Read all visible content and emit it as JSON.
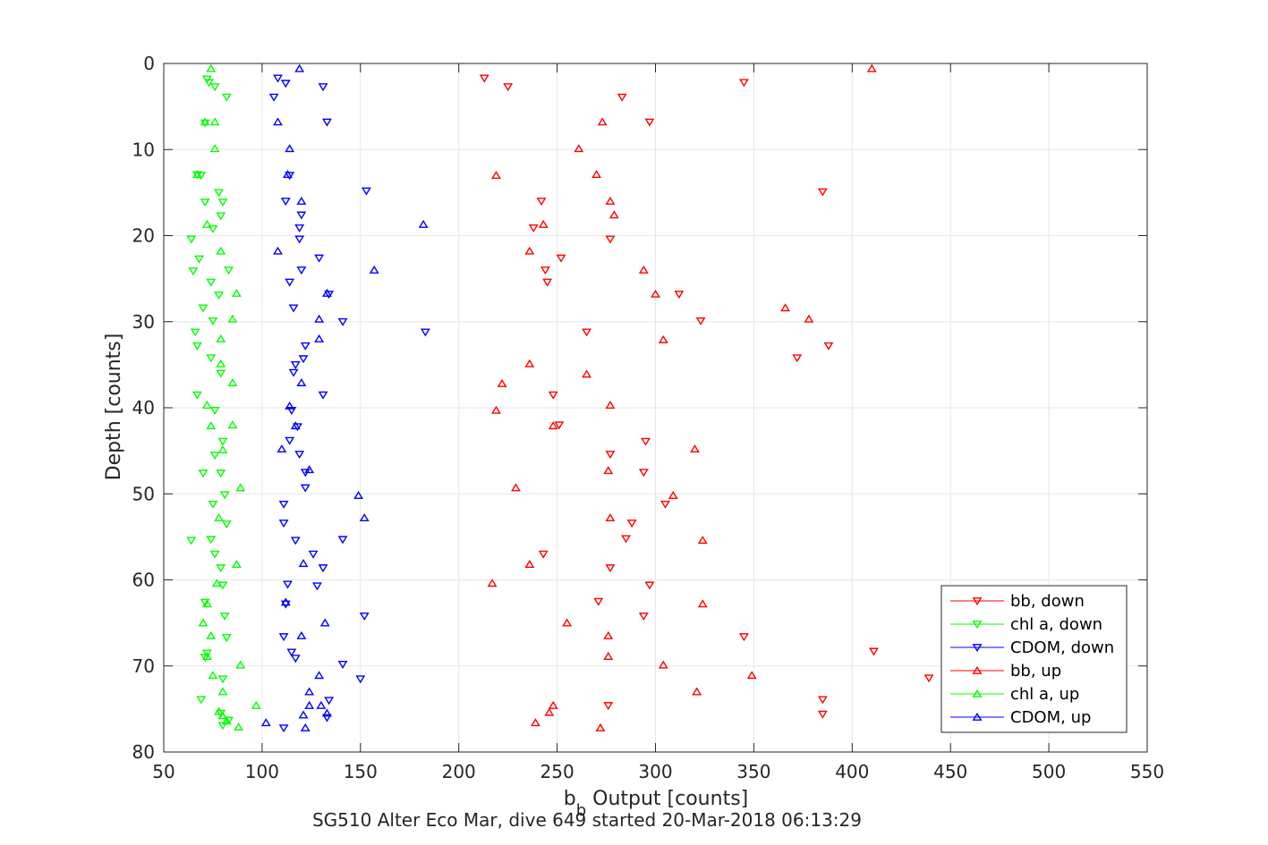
{
  "chart_data": {
    "type": "scatter",
    "title": "",
    "xlabel_main": "b",
    "xlabel_sub": "b",
    "xlabel_rest": " Output [counts]",
    "ylabel": "Depth [counts]",
    "caption": "SG510 Alter Eco Mar, dive 649 started 20-Mar-2018 06:13:29",
    "xlim": [
      50,
      550
    ],
    "ylim": [
      0,
      80
    ],
    "y_reversed": true,
    "xticks": [
      50,
      100,
      150,
      200,
      250,
      300,
      350,
      400,
      450,
      500,
      550
    ],
    "yticks": [
      0,
      10,
      20,
      30,
      40,
      50,
      60,
      70,
      80
    ],
    "grid": true,
    "legend_position": "bottom-right",
    "series": [
      {
        "name": "bb, down",
        "color": "#ff0000",
        "marker": "triangle-down",
        "points": [
          [
            213,
            1.7
          ],
          [
            225,
            2.7
          ],
          [
            345,
            2.2
          ],
          [
            283,
            3.9
          ],
          [
            297,
            6.8
          ],
          [
            385,
            14.9
          ],
          [
            242,
            16.0
          ],
          [
            238,
            19.1
          ],
          [
            277,
            20.4
          ],
          [
            252,
            22.6
          ],
          [
            244,
            24.0
          ],
          [
            245,
            25.4
          ],
          [
            312,
            26.8
          ],
          [
            323,
            29.9
          ],
          [
            265,
            31.2
          ],
          [
            388,
            32.8
          ],
          [
            372,
            34.2
          ],
          [
            248,
            38.5
          ],
          [
            251,
            42.0
          ],
          [
            295,
            43.9
          ],
          [
            277,
            45.4
          ],
          [
            294,
            47.5
          ],
          [
            305,
            51.2
          ],
          [
            288,
            53.4
          ],
          [
            285,
            55.2
          ],
          [
            243,
            57.0
          ],
          [
            277,
            58.6
          ],
          [
            297,
            60.6
          ],
          [
            271,
            62.5
          ],
          [
            294,
            64.2
          ],
          [
            345,
            66.6
          ],
          [
            411,
            68.3
          ],
          [
            439,
            71.4
          ],
          [
            385,
            73.9
          ],
          [
            385,
            75.6
          ],
          [
            276,
            74.6
          ]
        ]
      },
      {
        "name": "chl a, down",
        "color": "#00ff00",
        "marker": "triangle-down",
        "points": [
          [
            72,
            1.8
          ],
          [
            73,
            2.2
          ],
          [
            76,
            2.7
          ],
          [
            82,
            3.9
          ],
          [
            71,
            6.9
          ],
          [
            67,
            12.9
          ],
          [
            69,
            13.0
          ],
          [
            78,
            15.0
          ],
          [
            80,
            16.1
          ],
          [
            71,
            16.1
          ],
          [
            79,
            17.7
          ],
          [
            75,
            19.2
          ],
          [
            64,
            20.4
          ],
          [
            68,
            22.7
          ],
          [
            83,
            24.0
          ],
          [
            65,
            24.1
          ],
          [
            74,
            25.4
          ],
          [
            78,
            26.9
          ],
          [
            70,
            28.4
          ],
          [
            75,
            29.9
          ],
          [
            66,
            31.2
          ],
          [
            67,
            32.8
          ],
          [
            74,
            34.2
          ],
          [
            79,
            36.0
          ],
          [
            67,
            38.5
          ],
          [
            76,
            40.3
          ],
          [
            80,
            43.9
          ],
          [
            76,
            45.5
          ],
          [
            70,
            47.6
          ],
          [
            79,
            47.6
          ],
          [
            81,
            50.1
          ],
          [
            75,
            51.2
          ],
          [
            82,
            53.5
          ],
          [
            64,
            55.4
          ],
          [
            74,
            55.3
          ],
          [
            76,
            57.0
          ],
          [
            79,
            58.6
          ],
          [
            80,
            60.6
          ],
          [
            71,
            62.6
          ],
          [
            81,
            64.2
          ],
          [
            82,
            66.7
          ],
          [
            72,
            68.5
          ],
          [
            71,
            69.0
          ],
          [
            80,
            71.5
          ],
          [
            69,
            73.9
          ],
          [
            79,
            75.5
          ],
          [
            80,
            76.9
          ],
          [
            83,
            76.3
          ]
        ]
      },
      {
        "name": "CDOM, down",
        "color": "#0000ff",
        "marker": "triangle-down",
        "points": [
          [
            108,
            1.7
          ],
          [
            112,
            2.3
          ],
          [
            131,
            2.7
          ],
          [
            106,
            3.9
          ],
          [
            133,
            6.8
          ],
          [
            114,
            13.0
          ],
          [
            153,
            14.8
          ],
          [
            112,
            16.0
          ],
          [
            120,
            17.6
          ],
          [
            119,
            19.1
          ],
          [
            119,
            20.4
          ],
          [
            129,
            22.6
          ],
          [
            120,
            24.0
          ],
          [
            114,
            25.4
          ],
          [
            134,
            26.8
          ],
          [
            116,
            28.4
          ],
          [
            141,
            30.0
          ],
          [
            183,
            31.2
          ],
          [
            122,
            32.8
          ],
          [
            121,
            34.3
          ],
          [
            117,
            35.0
          ],
          [
            116,
            35.9
          ],
          [
            131,
            38.5
          ],
          [
            115,
            40.3
          ],
          [
            118,
            42.2
          ],
          [
            114,
            43.8
          ],
          [
            119,
            45.4
          ],
          [
            122,
            47.5
          ],
          [
            122,
            49.3
          ],
          [
            111,
            51.2
          ],
          [
            111,
            53.4
          ],
          [
            117,
            55.4
          ],
          [
            141,
            55.3
          ],
          [
            126,
            57.0
          ],
          [
            131,
            58.6
          ],
          [
            113,
            60.5
          ],
          [
            128,
            60.7
          ],
          [
            112,
            62.8
          ],
          [
            152,
            64.2
          ],
          [
            111,
            66.6
          ],
          [
            115,
            68.4
          ],
          [
            117,
            69.1
          ],
          [
            141,
            69.8
          ],
          [
            150,
            71.5
          ],
          [
            134,
            74.0
          ],
          [
            133,
            76.0
          ],
          [
            111,
            77.2
          ]
        ]
      },
      {
        "name": "bb, up",
        "color": "#ff0000",
        "marker": "triangle-up",
        "points": [
          [
            410,
            0.6
          ],
          [
            273,
            6.8
          ],
          [
            261,
            9.9
          ],
          [
            270,
            12.9
          ],
          [
            219,
            13.0
          ],
          [
            277,
            16.0
          ],
          [
            279,
            17.6
          ],
          [
            243,
            18.7
          ],
          [
            236,
            21.8
          ],
          [
            294,
            24.0
          ],
          [
            300,
            26.8
          ],
          [
            366,
            28.4
          ],
          [
            378,
            29.7
          ],
          [
            304,
            32.1
          ],
          [
            236,
            34.9
          ],
          [
            265,
            36.1
          ],
          [
            222,
            37.2
          ],
          [
            277,
            39.7
          ],
          [
            219,
            40.3
          ],
          [
            248,
            42.1
          ],
          [
            320,
            44.8
          ],
          [
            276,
            47.3
          ],
          [
            229,
            49.3
          ],
          [
            309,
            50.2
          ],
          [
            277,
            52.8
          ],
          [
            324,
            55.4
          ],
          [
            236,
            58.2
          ],
          [
            217,
            60.4
          ],
          [
            324,
            62.8
          ],
          [
            255,
            65.0
          ],
          [
            276,
            66.5
          ],
          [
            276,
            68.9
          ],
          [
            304,
            69.9
          ],
          [
            349,
            71.1
          ],
          [
            321,
            73.0
          ],
          [
            248,
            74.6
          ],
          [
            246,
            75.4
          ],
          [
            239,
            76.6
          ],
          [
            272,
            77.2
          ]
        ]
      },
      {
        "name": "chl a, up",
        "color": "#00ff00",
        "marker": "triangle-up",
        "points": [
          [
            74,
            0.6
          ],
          [
            71,
            6.8
          ],
          [
            76,
            6.8
          ],
          [
            76,
            9.9
          ],
          [
            67,
            12.9
          ],
          [
            72,
            18.7
          ],
          [
            79,
            21.8
          ],
          [
            87,
            26.7
          ],
          [
            85,
            29.7
          ],
          [
            79,
            32.0
          ],
          [
            79,
            34.9
          ],
          [
            85,
            37.1
          ],
          [
            72,
            39.7
          ],
          [
            74,
            42.1
          ],
          [
            85,
            42.0
          ],
          [
            80,
            44.9
          ],
          [
            89,
            49.3
          ],
          [
            78,
            52.8
          ],
          [
            87,
            58.2
          ],
          [
            77,
            60.4
          ],
          [
            72,
            62.8
          ],
          [
            70,
            65.0
          ],
          [
            74,
            66.5
          ],
          [
            72,
            68.9
          ],
          [
            89,
            69.9
          ],
          [
            75,
            71.1
          ],
          [
            80,
            73.0
          ],
          [
            97,
            74.6
          ],
          [
            78,
            75.3
          ],
          [
            80,
            75.8
          ],
          [
            82,
            76.4
          ],
          [
            88,
            77.1
          ]
        ]
      },
      {
        "name": "CDOM, up",
        "color": "#0000ff",
        "marker": "triangle-up",
        "points": [
          [
            119,
            0.6
          ],
          [
            108,
            6.8
          ],
          [
            114,
            9.9
          ],
          [
            113,
            12.9
          ],
          [
            120,
            16.0
          ],
          [
            182,
            18.7
          ],
          [
            108,
            21.8
          ],
          [
            157,
            24.0
          ],
          [
            133,
            26.7
          ],
          [
            129,
            29.7
          ],
          [
            129,
            32.0
          ],
          [
            120,
            37.1
          ],
          [
            114,
            39.8
          ],
          [
            117,
            42.1
          ],
          [
            110,
            44.8
          ],
          [
            124,
            47.2
          ],
          [
            149,
            50.2
          ],
          [
            152,
            52.8
          ],
          [
            121,
            58.1
          ],
          [
            132,
            65.0
          ],
          [
            120,
            66.5
          ],
          [
            129,
            71.1
          ],
          [
            124,
            73.0
          ],
          [
            124,
            74.6
          ],
          [
            130,
            74.6
          ],
          [
            121,
            75.7
          ],
          [
            133,
            75.5
          ],
          [
            102,
            76.6
          ],
          [
            122,
            77.2
          ],
          [
            112,
            62.6
          ]
        ]
      }
    ]
  }
}
